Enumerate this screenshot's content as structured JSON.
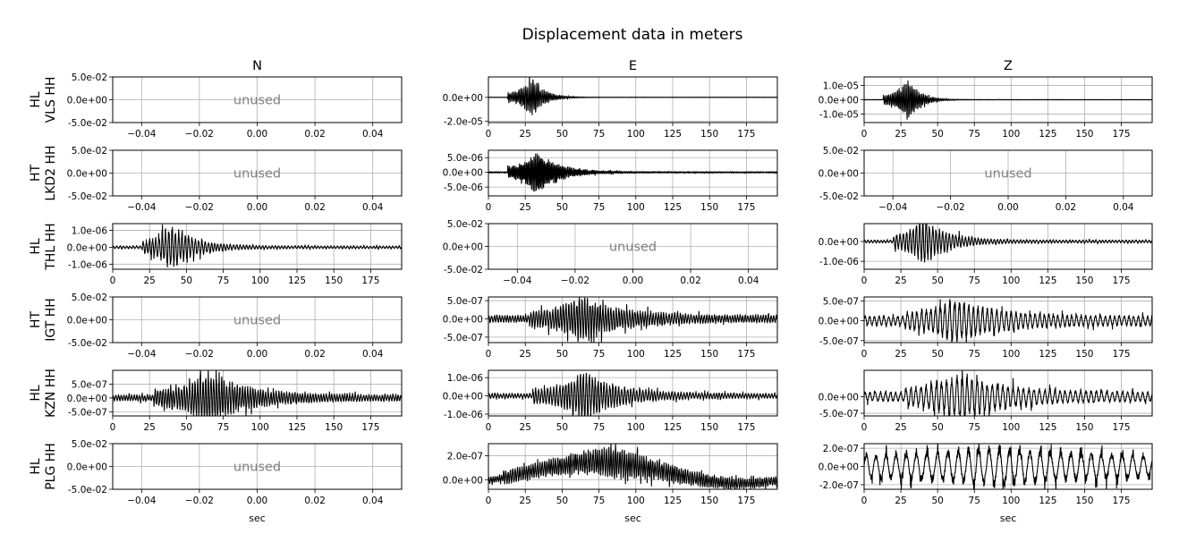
{
  "chart_data": {
    "type": "line",
    "title": "Displacement data in meters",
    "columns": [
      "N",
      "E",
      "Z"
    ],
    "xlabel": "sec",
    "xlim_data": [
      0,
      196
    ],
    "xticks_data": [
      "0",
      "25",
      "50",
      "75",
      "100",
      "125",
      "150",
      "175"
    ],
    "xticks_unused": [
      "−0.04",
      "−0.02",
      "0.00",
      "0.02",
      "0.04"
    ],
    "unused_yticks": [
      "5.0e-02",
      "0.0e+00",
      "-5.0e-02"
    ],
    "unused_text": "unused",
    "grid": true,
    "rows": [
      {
        "label_net": "HL",
        "label_sta": "VLS HH",
        "panels": [
          {
            "unused": true
          },
          {
            "unused": false,
            "amplitude": 1.7e-05,
            "ylim": [
              -2.1e-05,
              1.7e-05
            ],
            "yticks": [
              {
                "v": 0,
                "t": "0.0e+00"
              },
              {
                "v": -2e-05,
                "t": "-2.0e-05"
              }
            ],
            "onset": 13,
            "peak_t": 30,
            "decay": 8,
            "dom_period": 1.2,
            "noise": 0.01,
            "long_period": 0
          },
          {
            "unused": false,
            "amplitude": 1.5e-05,
            "ylim": [
              -1.6e-05,
              1.6e-05
            ],
            "yticks": [
              {
                "v": 1e-05,
                "t": "1.0e-05"
              },
              {
                "v": 0,
                "t": "0.0e+00"
              },
              {
                "v": -1e-05,
                "t": "-1.0e-05"
              }
            ],
            "onset": 13,
            "peak_t": 30,
            "decay": 8,
            "dom_period": 1.2,
            "noise": 0.01,
            "long_period": 0
          }
        ]
      },
      {
        "label_net": "HT",
        "label_sta": "LKD2 HH",
        "panels": [
          {
            "unused": true
          },
          {
            "unused": false,
            "amplitude": 8e-06,
            "ylim": [
              -8e-06,
              7.5e-06
            ],
            "yticks": [
              {
                "v": 5e-06,
                "t": "5.0e-06"
              },
              {
                "v": 0,
                "t": "0.0e+00"
              },
              {
                "v": -5e-06,
                "t": "-5.0e-06"
              }
            ],
            "onset": 13,
            "peak_t": 33,
            "decay": 14,
            "dom_period": 1.0,
            "noise": 0.03,
            "long_period": 0
          },
          {
            "unused": true
          }
        ]
      },
      {
        "label_net": "HL",
        "label_sta": "THL HH",
        "panels": [
          {
            "unused": false,
            "amplitude": 1.4e-06,
            "ylim": [
              -1.3e-06,
              1.4e-06
            ],
            "yticks": [
              {
                "v": 1e-06,
                "t": "1.0e-06"
              },
              {
                "v": 0,
                "t": "0.0e+00"
              },
              {
                "v": -1e-06,
                "t": "-1.0e-06"
              }
            ],
            "onset": 20,
            "peak_t": 40,
            "decay": 16,
            "dom_period": 2.2,
            "noise": 0.06,
            "long_period": 0
          },
          {
            "unused": true
          },
          {
            "unused": false,
            "amplitude": 1.3e-06,
            "ylim": [
              -1.4e-06,
              9e-07
            ],
            "yticks": [
              {
                "v": 0,
                "t": "0.0e+00"
              },
              {
                "v": -1e-06,
                "t": "-1.0e-06"
              }
            ],
            "onset": 20,
            "peak_t": 40,
            "decay": 16,
            "dom_period": 2.2,
            "noise": 0.06,
            "long_period": 0
          }
        ]
      },
      {
        "label_net": "HT",
        "label_sta": "IGT HH",
        "panels": [
          {
            "unused": true
          },
          {
            "unused": false,
            "amplitude": 6.5e-07,
            "ylim": [
              -6.5e-07,
              6e-07
            ],
            "yticks": [
              {
                "v": 5e-07,
                "t": "5.0e-07"
              },
              {
                "v": 0,
                "t": "0.0e+00"
              },
              {
                "v": -5e-07,
                "t": "-5.0e-07"
              }
            ],
            "onset": 28,
            "peak_t": 62,
            "decay": 28,
            "dom_period": 1.8,
            "noise": 0.16,
            "long_period": 0
          },
          {
            "unused": false,
            "amplitude": 6e-07,
            "ylim": [
              -5.5e-07,
              6e-07
            ],
            "yticks": [
              {
                "v": 5e-07,
                "t": "5.0e-07"
              },
              {
                "v": 0,
                "t": "0.0e+00"
              },
              {
                "v": -5e-07,
                "t": "-5.0e-07"
              }
            ],
            "onset": 28,
            "peak_t": 62,
            "decay": 30,
            "dom_period": 3.2,
            "noise": 0.22,
            "long_period": 0
          }
        ]
      },
      {
        "label_net": "HL",
        "label_sta": "KZN HH",
        "panels": [
          {
            "unused": false,
            "amplitude": 1e-06,
            "ylim": [
              -6.5e-07,
              1e-06
            ],
            "yticks": [
              {
                "v": 5e-07,
                "t": "5.0e-07"
              },
              {
                "v": 0,
                "t": "0.0e+00"
              },
              {
                "v": -5e-07,
                "t": "-5.0e-07"
              }
            ],
            "onset": 28,
            "peak_t": 65,
            "decay": 26,
            "dom_period": 1.8,
            "noise": 0.12,
            "long_period": 0
          },
          {
            "unused": false,
            "amplitude": 1.4e-06,
            "ylim": [
              -1.1e-06,
              1.4e-06
            ],
            "yticks": [
              {
                "v": 1e-06,
                "t": "1.0e-06"
              },
              {
                "v": 0,
                "t": "0.0e+00"
              },
              {
                "v": -1e-06,
                "t": "-1.0e-06"
              }
            ],
            "onset": 30,
            "peak_t": 65,
            "decay": 24,
            "dom_period": 2.0,
            "noise": 0.1,
            "long_period": 0
          },
          {
            "unused": false,
            "amplitude": 8e-07,
            "ylim": [
              -5.8e-07,
              8e-07
            ],
            "yticks": [
              {
                "v": 0,
                "t": "0.0e+00"
              },
              {
                "v": -5e-07,
                "t": "-5.0e-07"
              }
            ],
            "onset": 28,
            "peak_t": 65,
            "decay": 30,
            "dom_period": 3.5,
            "noise": 0.2,
            "long_period": 0
          }
        ]
      },
      {
        "label_net": "HL",
        "label_sta": "PLG HH",
        "panels": [
          {
            "unused": true
          },
          {
            "unused": false,
            "amplitude": 3.2e-07,
            "ylim": [
              -8e-08,
              3e-07
            ],
            "yticks": [
              {
                "v": 2e-07,
                "t": "2.0e-07"
              },
              {
                "v": 0,
                "t": "0.0e+00"
              }
            ],
            "onset": 10,
            "peak_t": 85,
            "decay": 45,
            "dom_period": 1.5,
            "noise": 0.22,
            "long_period": 1
          },
          {
            "unused": false,
            "amplitude": 2.5e-07,
            "ylim": [
              -2.5e-07,
              2.5e-07
            ],
            "yticks": [
              {
                "v": 2e-07,
                "t": "2.0e-07"
              },
              {
                "v": 0,
                "t": "0.0e+00"
              },
              {
                "v": -2e-07,
                "t": "-2.0e-07"
              }
            ],
            "onset": 0,
            "peak_t": 90,
            "decay": 60,
            "dom_period": 7.0,
            "noise": 0.5,
            "long_period": 0
          }
        ]
      }
    ]
  }
}
